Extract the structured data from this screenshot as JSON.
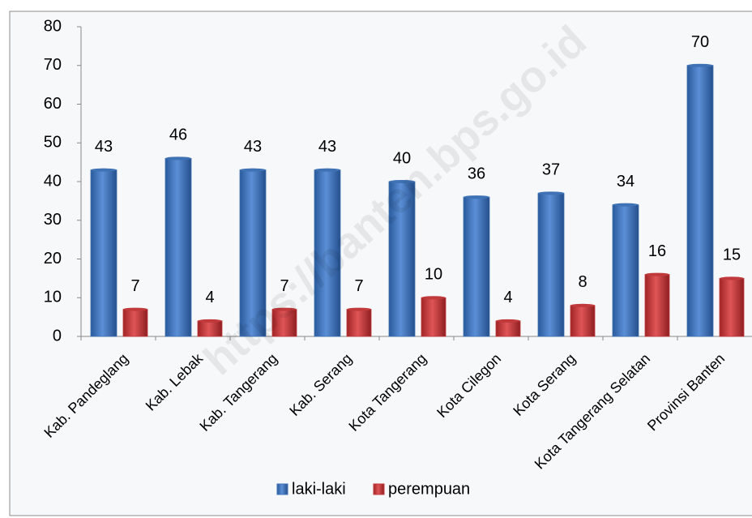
{
  "chart_data": {
    "type": "bar",
    "categories": [
      "Kab. Pandeglang",
      "Kab. Lebak",
      "Kab. Tangerang",
      "Kab. Serang",
      "Kota Tangerang",
      "Kota Cilegon",
      "Kota Serang",
      "Kota Tangerang Selatan",
      "Provinsi Banten"
    ],
    "series": [
      {
        "name": "laki-laki",
        "color": "#3f72b5",
        "values": [
          43,
          46,
          43,
          43,
          40,
          36,
          37,
          34,
          70
        ]
      },
      {
        "name": "perempuan",
        "color": "#c0393b",
        "values": [
          7,
          4,
          7,
          7,
          10,
          4,
          8,
          16,
          15
        ]
      }
    ],
    "ylim": [
      0,
      80
    ],
    "yticks": [
      0,
      10,
      20,
      30,
      40,
      50,
      60,
      70,
      80
    ],
    "legend": "bottom",
    "watermark": "https://banten.bps.go.id"
  }
}
